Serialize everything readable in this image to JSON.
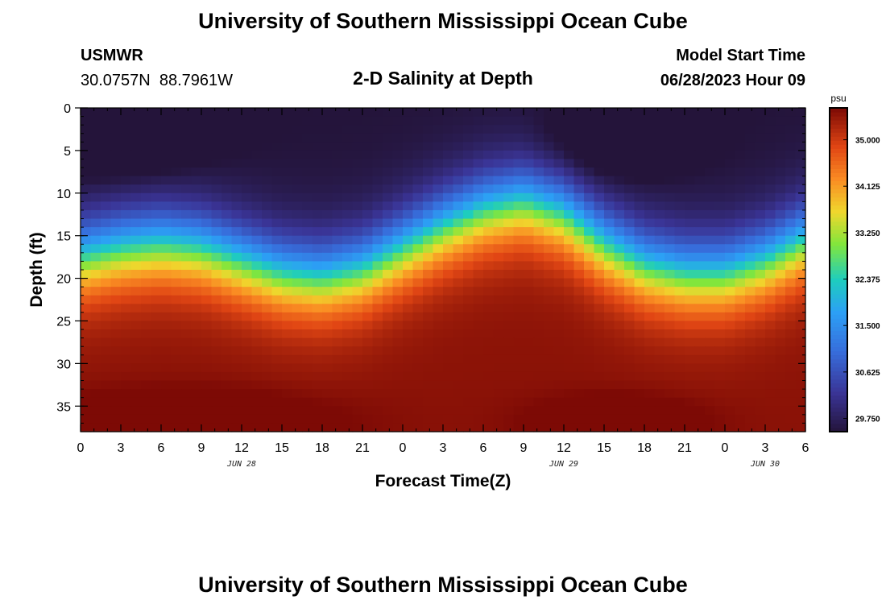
{
  "header": {
    "title": "University of Southern Mississippi Ocean Cube",
    "station_name": "USMWR",
    "coordinates": "30.0757N  88.7961W",
    "plot_title": "2-D Salinity at Depth",
    "model_start_label": "Model Start Time",
    "model_start_value": "06/28/2023 Hour 09"
  },
  "footer": {
    "title": "University of Southern Mississippi Ocean Cube"
  },
  "chart_data": {
    "type": "heatmap",
    "title": "2-D Salinity at Depth",
    "xlabel": "Forecast Time(Z)",
    "ylabel": "Depth (ft)",
    "xlim": [
      0,
      54
    ],
    "ylim": [
      0,
      38
    ],
    "x_ticks": [
      {
        "value": 0,
        "label": "0"
      },
      {
        "value": 3,
        "label": "3"
      },
      {
        "value": 6,
        "label": "6"
      },
      {
        "value": 9,
        "label": "9"
      },
      {
        "value": 12,
        "label": "12"
      },
      {
        "value": 15,
        "label": "15"
      },
      {
        "value": 18,
        "label": "18"
      },
      {
        "value": 21,
        "label": "21"
      },
      {
        "value": 24,
        "label": "0"
      },
      {
        "value": 27,
        "label": "3"
      },
      {
        "value": 30,
        "label": "6"
      },
      {
        "value": 33,
        "label": "9"
      },
      {
        "value": 36,
        "label": "12"
      },
      {
        "value": 39,
        "label": "15"
      },
      {
        "value": 42,
        "label": "18"
      },
      {
        "value": 45,
        "label": "21"
      },
      {
        "value": 48,
        "label": "0"
      },
      {
        "value": 51,
        "label": "3"
      },
      {
        "value": 54,
        "label": "6"
      }
    ],
    "date_labels": [
      {
        "value": 12,
        "label": "JUN 28"
      },
      {
        "value": 36,
        "label": "JUN 29"
      },
      {
        "value": 51,
        "label": "JUN 30"
      }
    ],
    "y_ticks": [
      0,
      5,
      10,
      15,
      20,
      25,
      30,
      35
    ],
    "colorbar": {
      "unit": "psu",
      "min": 29.5,
      "max": 35.6,
      "ticks": [
        29.75,
        30.625,
        31.5,
        32.375,
        33.25,
        34.125,
        35.0
      ],
      "tick_labels": [
        "29.750",
        "30.625",
        "31.500",
        "32.375",
        "33.250",
        "34.125",
        "35.000"
      ]
    },
    "halocline_depth_ft": {
      "hours": [
        0,
        3,
        6,
        9,
        12,
        15,
        18,
        21,
        24,
        27,
        30,
        33,
        36,
        39,
        42,
        45,
        48,
        51,
        54
      ],
      "values": [
        17.5,
        16.5,
        16,
        16.5,
        18,
        19.5,
        20,
        19,
        16.5,
        14,
        12,
        11,
        12.5,
        16,
        18.5,
        19.5,
        19.5,
        18,
        15.5
      ]
    }
  }
}
